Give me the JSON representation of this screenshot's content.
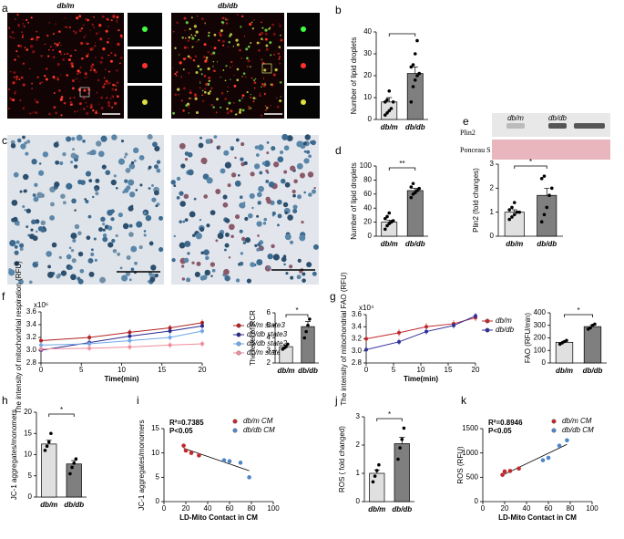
{
  "figure": {
    "panel_labels": [
      "a",
      "b",
      "c",
      "d",
      "e",
      "f",
      "g",
      "h",
      "i",
      "j",
      "k"
    ],
    "image_labels": [
      "db/m",
      "db/db"
    ],
    "blot": {
      "lanes": [
        "db/m",
        "db/db"
      ],
      "rows": [
        "Plin2",
        "Ponceau S"
      ]
    }
  },
  "chart_data": [
    {
      "type": "bar",
      "ylabel": "Number of lipid droplets",
      "categories": [
        "db/m",
        "db/db"
      ],
      "values": [
        8,
        21
      ],
      "errors": [
        2,
        3
      ],
      "colors": [
        "#e0e0e0",
        "#7f7f7f"
      ],
      "points": [
        [
          2,
          3,
          4,
          5,
          8,
          8,
          9,
          13
        ],
        [
          8,
          15,
          18,
          20,
          21,
          24,
          25,
          30,
          36
        ]
      ],
      "ylim": [
        0,
        40
      ],
      "yticks": [
        0,
        10,
        20,
        30,
        40
      ]
    },
    {
      "type": "bar",
      "ylabel": "Number of lipid droplets",
      "categories": [
        "db/m",
        "db/db"
      ],
      "values": [
        20,
        65
      ],
      "errors": [
        3,
        3
      ],
      "colors": [
        "#e0e0e0",
        "#7f7f7f"
      ],
      "significance": "**",
      "points": [
        [
          10,
          15,
          18,
          20,
          22,
          25,
          28,
          33
        ],
        [
          55,
          60,
          62,
          65,
          68,
          70,
          75
        ]
      ],
      "ylim": [
        0,
        100
      ],
      "yticks": [
        0,
        20,
        40,
        60,
        80,
        100
      ]
    },
    {
      "type": "bar",
      "ylabel": "Plin2 (fold changes)",
      "categories": [
        "db/m",
        "db/db"
      ],
      "values": [
        1.0,
        1.7
      ],
      "errors": [
        0.1,
        0.3
      ],
      "colors": [
        "#e0e0e0",
        "#7f7f7f"
      ],
      "significance": "*",
      "points": [
        [
          0.7,
          0.8,
          0.9,
          1.0,
          1.0,
          1.1,
          1.2,
          1.4
        ],
        [
          0.6,
          0.9,
          1.2,
          1.7,
          2.0,
          2.4,
          2.5
        ]
      ],
      "ylim": [
        0,
        3
      ],
      "yticks": [
        0,
        1,
        2,
        3
      ]
    },
    {
      "type": "line",
      "ylabel": "The intensity of mitochondrial respiration (RFU)",
      "xlabel": "Time(min)",
      "y_multiplier": "x10⁶",
      "x": [
        0,
        6,
        11,
        16,
        20
      ],
      "xlim": [
        0,
        20
      ],
      "xticks": [
        0,
        5,
        10,
        15,
        20
      ],
      "ylim": [
        2.8,
        3.6
      ],
      "yticks": [
        2.8,
        {
          "value": 3.0,
          "label": "3.0"
        },
        3.2,
        3.4,
        3.6
      ],
      "series": [
        {
          "name": "db/m state3",
          "color": "#b22222",
          "values": [
            3.15,
            3.2,
            3.28,
            3.35,
            3.43
          ],
          "errors": [
            0.05,
            0.05,
            0.05,
            0.05,
            0.05
          ]
        },
        {
          "name": "db/db state3",
          "color": "#2a2a8c",
          "values": [
            3.0,
            3.12,
            3.22,
            3.3,
            3.38
          ],
          "errors": [
            0.05,
            0.05,
            0.05,
            0.05,
            0.05
          ]
        },
        {
          "name": "db/db state2",
          "color": "#6fa8e8",
          "values": [
            3.08,
            3.1,
            3.15,
            3.2,
            3.3
          ],
          "errors": [
            0.05,
            0.05,
            0.05,
            0.05,
            0.05
          ]
        },
        {
          "name": "db/m state2",
          "color": "#f08c9c",
          "values": [
            3.02,
            3.03,
            3.05,
            3.08,
            3.1
          ],
          "errors": [
            0.05,
            0.05,
            0.05,
            0.05,
            0.05
          ]
        }
      ]
    },
    {
      "type": "bar",
      "ylabel": "The level of RCR",
      "categories": [
        "db/m",
        "db/db"
      ],
      "values": [
        3.3,
        4.9
      ],
      "errors": [
        0.15,
        0.4
      ],
      "colors": [
        "#e0e0e0",
        "#7f7f7f"
      ],
      "significance": "*",
      "points": [
        [
          3.1,
          3.2,
          3.3,
          3.5
        ],
        [
          4.0,
          4.5,
          5.0,
          5.5
        ]
      ],
      "ylim": [
        2,
        6
      ],
      "yticks": [
        2,
        3,
        4,
        5,
        6
      ]
    },
    {
      "type": "line",
      "ylabel": "The intensity of mitochondrial FAO (RFU)",
      "xlabel": "Time(min)",
      "y_multiplier": "x10⁴",
      "x": [
        0,
        6,
        11,
        16,
        20
      ],
      "xlim": [
        0,
        20
      ],
      "xticks": [
        0,
        5,
        10,
        15,
        20
      ],
      "ylim": [
        2.8,
        3.6
      ],
      "yticks": [
        2.8,
        {
          "value": 3.0,
          "label": "3.0"
        },
        3.2,
        3.4,
        3.6
      ],
      "series": [
        {
          "name": "db/m",
          "color": "#c0282d",
          "values": [
            3.2,
            3.3,
            3.4,
            3.45,
            3.55
          ],
          "errors": [
            0.06,
            0.06,
            0.06,
            0.06,
            0.06
          ]
        },
        {
          "name": "db/db",
          "color": "#2f2f9a",
          "values": [
            3.02,
            3.15,
            3.32,
            3.42,
            3.58
          ],
          "errors": [
            0.05,
            0.05,
            0.05,
            0.05,
            0.05
          ]
        }
      ]
    },
    {
      "type": "bar",
      "ylabel": "FAO (RFU/min)",
      "categories": [
        "db/m",
        "db/db"
      ],
      "values": [
        165,
        290
      ],
      "errors": [
        8,
        12
      ],
      "colors": [
        "#e0e0e0",
        "#7f7f7f"
      ],
      "significance": "*",
      "points": [
        [
          150,
          160,
          170,
          180
        ],
        [
          270,
          280,
          300,
          310
        ]
      ],
      "ylim": [
        0,
        400
      ],
      "yticks": [
        0,
        100,
        200,
        300,
        400
      ]
    },
    {
      "type": "bar",
      "ylabel": "JC-1 aggregates/monomers",
      "categories": [
        "db/m",
        "db/db"
      ],
      "values": [
        12.5,
        7.8
      ],
      "errors": [
        0.9,
        0.8
      ],
      "colors": [
        "#e0e0e0",
        "#7f7f7f"
      ],
      "significance": "*",
      "points": [
        [
          11,
          12,
          13,
          15
        ],
        [
          5.5,
          7,
          8,
          9
        ]
      ],
      "ylim": [
        0,
        20
      ],
      "yticks": [
        0,
        5,
        10,
        15,
        20
      ]
    },
    {
      "type": "scatter",
      "ylabel": "JC-1 aggregates/monomers",
      "xlabel": "LD-Mito Contact in CM",
      "annotations": [
        "R²=0.7385",
        "P<0.05"
      ],
      "xlim": [
        0,
        100
      ],
      "xticks": [
        0,
        20,
        40,
        60,
        80,
        100
      ],
      "ylim": [
        0,
        15
      ],
      "yticks": [
        0,
        5,
        10,
        15
      ],
      "series": [
        {
          "name": "db/m CM",
          "color": "#c0282d",
          "x": [
            18,
            20,
            25,
            32
          ],
          "values": [
            11.5,
            10.5,
            10,
            9.5
          ]
        },
        {
          "name": "db/db CM",
          "color": "#4f86c6",
          "x": [
            55,
            60,
            70,
            78
          ],
          "values": [
            8.5,
            8.3,
            8.0,
            5
          ]
        }
      ]
    },
    {
      "type": "bar",
      "ylabel": "ROS ( fold changed)",
      "categories": [
        "db/m",
        "db/db"
      ],
      "values": [
        1.0,
        2.05
      ],
      "errors": [
        0.12,
        0.22
      ],
      "colors": [
        "#e0e0e0",
        "#7f7f7f"
      ],
      "significance": "*",
      "points": [
        [
          0.7,
          0.9,
          1.1,
          1.3
        ],
        [
          1.5,
          1.9,
          2.2,
          2.6
        ]
      ],
      "ylim": [
        0,
        3
      ],
      "yticks": [
        0,
        1,
        2,
        3
      ]
    },
    {
      "type": "scatter",
      "ylabel": "ROS (RFU)",
      "xlabel": "LD-Mito Contact in CM",
      "annotations": [
        "R²=0.8946",
        "P<0.05"
      ],
      "xlim": [
        0,
        100
      ],
      "xticks": [
        0,
        20,
        40,
        60,
        80,
        100
      ],
      "ylim": [
        0,
        1500
      ],
      "yticks": [
        0,
        500,
        1000,
        1500
      ],
      "series": [
        {
          "name": "db/m CM",
          "color": "#c0282d",
          "x": [
            18,
            20,
            25,
            33
          ],
          "values": [
            550,
            620,
            630,
            680
          ]
        },
        {
          "name": "db/db CM",
          "color": "#4f86c6",
          "x": [
            55,
            60,
            70,
            77
          ],
          "values": [
            850,
            900,
            1150,
            1260
          ]
        }
      ]
    }
  ]
}
